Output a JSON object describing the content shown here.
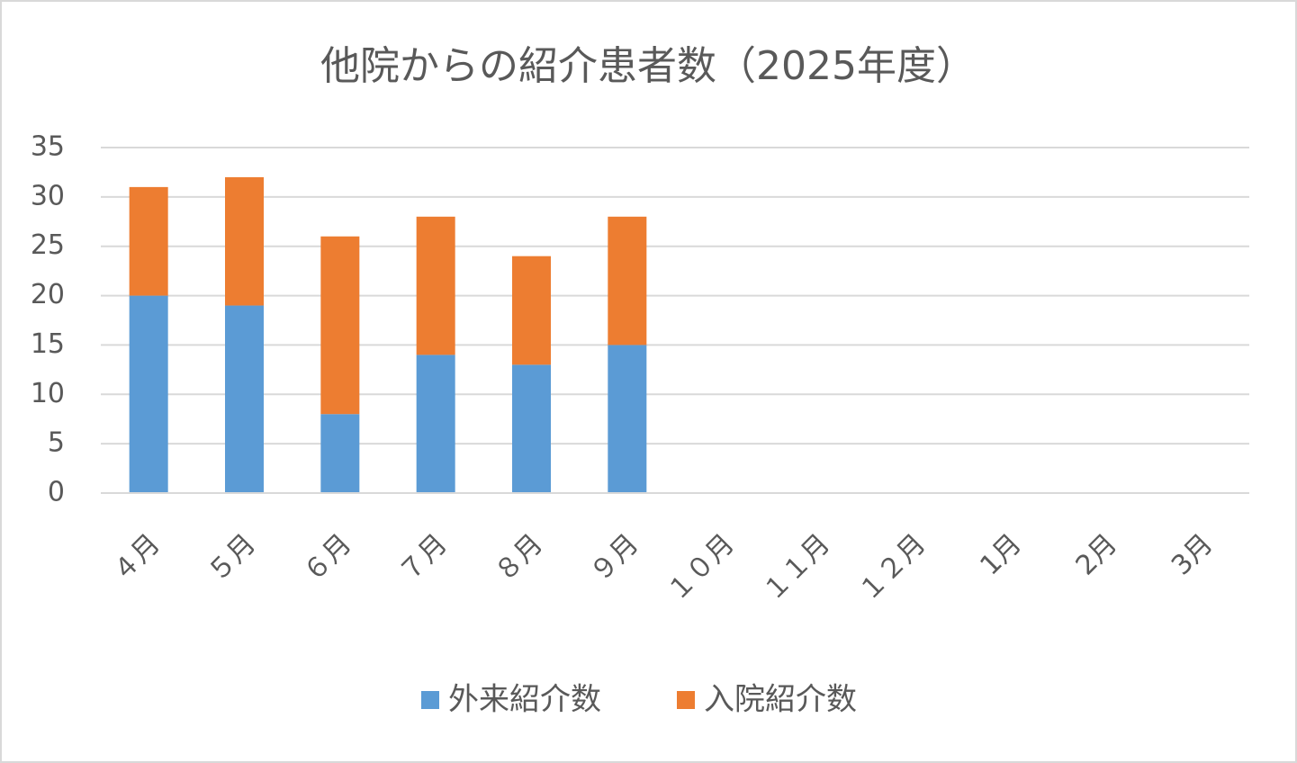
{
  "chart_data": {
    "type": "stacked_bar",
    "title": "他院からの紹介患者数（2025年度）",
    "categories": [
      "４月",
      "５月",
      "６月",
      "７月",
      "８月",
      "９月",
      "１０月",
      "１１月",
      "１２月",
      "1月",
      "2月",
      "3月"
    ],
    "series": [
      {
        "name": "外来紹介数",
        "color": "#5b9bd5",
        "values": [
          20,
          19,
          8,
          14,
          13,
          15,
          null,
          null,
          null,
          null,
          null,
          null
        ]
      },
      {
        "name": "入院紹介数",
        "color": "#ed7d31",
        "values": [
          11,
          13,
          18,
          14,
          11,
          13,
          null,
          null,
          null,
          null,
          null,
          null
        ]
      }
    ],
    "ylim": [
      0,
      35
    ],
    "yticks": [
      0,
      5,
      10,
      15,
      20,
      25,
      30,
      35
    ],
    "grid": true,
    "legend": "bottom"
  }
}
